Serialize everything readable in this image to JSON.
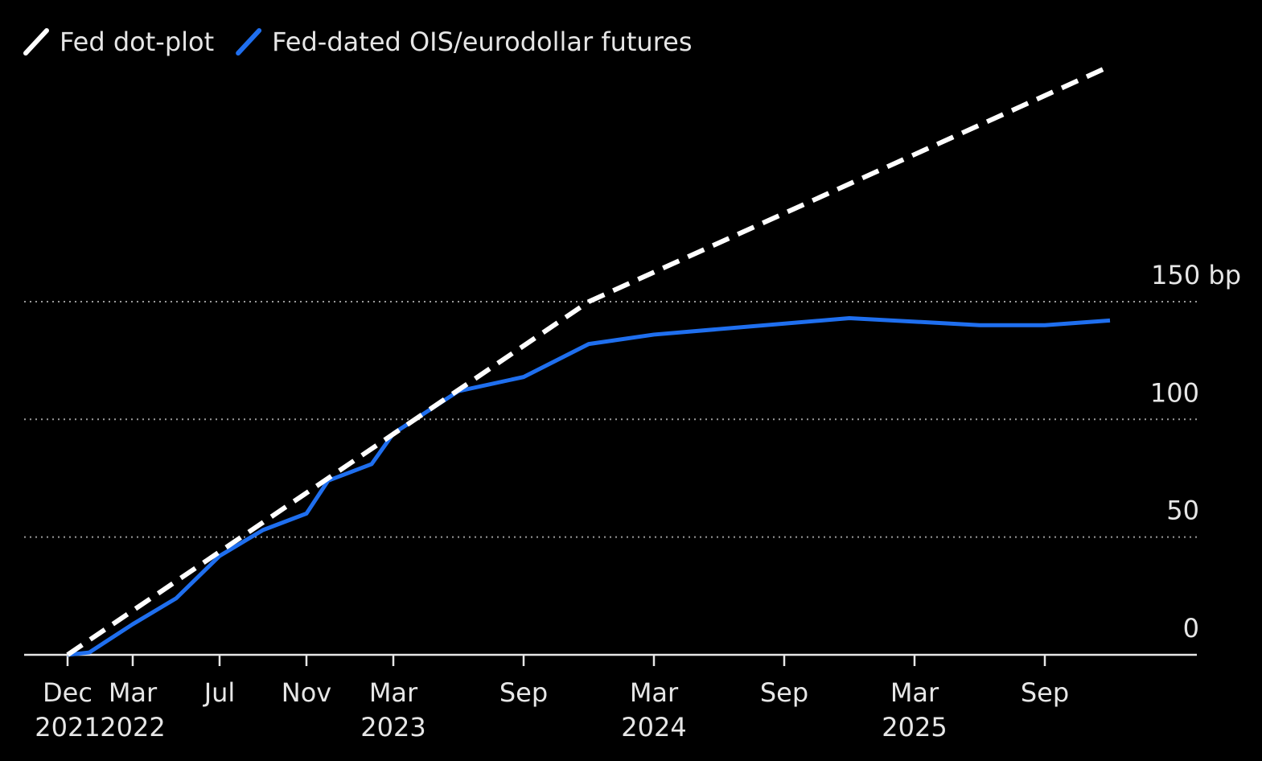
{
  "chart_data": {
    "type": "line",
    "x": [
      "2021-12",
      "2022-01",
      "2022-03",
      "2022-05",
      "2022-07",
      "2022-09",
      "2022-11",
      "2022-12",
      "2023-02",
      "2023-03",
      "2023-06",
      "2023-09",
      "2023-12",
      "2024-03",
      "2024-12",
      "2025-06",
      "2025-09",
      "2025-12"
    ],
    "series": [
      {
        "name": "Fed dot-plot",
        "color": "#ffffff",
        "dashed": true,
        "values": [
          0,
          null,
          null,
          null,
          null,
          null,
          null,
          null,
          null,
          null,
          null,
          null,
          150,
          null,
          200,
          null,
          null,
          250
        ]
      },
      {
        "name": "Fed-dated OIS/eurodollar futures",
        "color": "#1f6fef",
        "dashed": false,
        "values": [
          0,
          1,
          13,
          24,
          42,
          53,
          60,
          74,
          81,
          94,
          112,
          118,
          132,
          136,
          143,
          140,
          140,
          142
        ]
      }
    ],
    "xlim": [
      "2021-10",
      "2026-04"
    ],
    "xticks": [
      {
        "value": "2021-12",
        "label": "Dec 2021"
      },
      {
        "value": "2022-03",
        "label": "Mar 2022"
      },
      {
        "value": "2022-07",
        "label": "Jul"
      },
      {
        "value": "2022-11",
        "label": "Nov"
      },
      {
        "value": "2023-03",
        "label": "Mar 2023"
      },
      {
        "value": "2023-09",
        "label": "Sep"
      },
      {
        "value": "2024-03",
        "label": "Mar 2024"
      },
      {
        "value": "2024-09",
        "label": "Sep"
      },
      {
        "value": "2025-03",
        "label": "Mar 2025"
      },
      {
        "value": "2025-09",
        "label": "Sep"
      }
    ],
    "ylim": [
      0,
      260
    ],
    "yticks": [
      0,
      50,
      100,
      {
        "value": 150,
        "label": "150 bp"
      }
    ],
    "grid": true,
    "legend": "top-left"
  }
}
